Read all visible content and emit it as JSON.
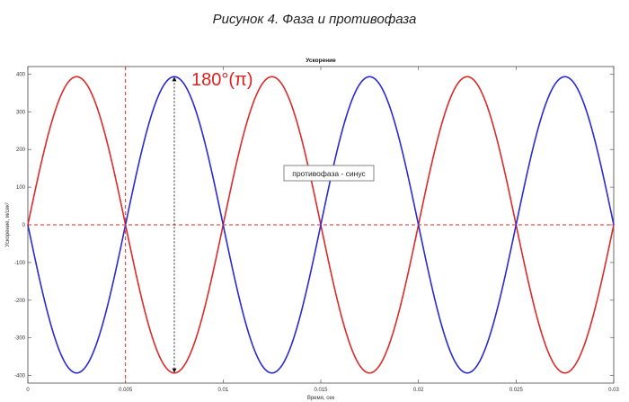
{
  "figure": {
    "caption": "Рисунок 4. Фаза и противофаза"
  },
  "chart_data": {
    "type": "line",
    "title": "Ускорение",
    "xlabel": "Время, сек",
    "ylabel": "Ускорение, м/сек²",
    "xlim": [
      0,
      0.03
    ],
    "ylim": [
      -420,
      420
    ],
    "grid": false,
    "x_ticks": [
      0,
      0.005,
      0.01,
      0.015,
      0.02,
      0.025,
      0.03
    ],
    "x_tick_labels": [
      "0",
      "0.005",
      "0.01",
      "0.015",
      "0.02",
      "0.025",
      "0.03"
    ],
    "y_ticks": [
      -400,
      -300,
      -200,
      -100,
      0,
      100,
      200,
      300,
      400
    ],
    "y_tick_labels": [
      "-400",
      "-300",
      "-200",
      "-100",
      "0",
      "100",
      "200",
      "300",
      "400"
    ],
    "series": [
      {
        "color": "#dd2a2a",
        "amplitude": 393,
        "frequency_hz": 100,
        "phase_rad": 0
      },
      {
        "color": "#2a2ad6",
        "amplitude": 393,
        "frequency_hz": 100,
        "phase_rad": 3.14159
      }
    ],
    "annotations": {
      "phase_label": {
        "text": "180°(π)",
        "color": "#e02020"
      },
      "callout": {
        "text": "противофаза - синус"
      },
      "reference_lines": {
        "color": "#dd2a2a",
        "vertical_x": 0.005,
        "horizontal_y": 0
      },
      "phase_arrow": {
        "x": 0.0075,
        "y_from": 393,
        "y_to": -393,
        "color": "#111111"
      }
    }
  }
}
